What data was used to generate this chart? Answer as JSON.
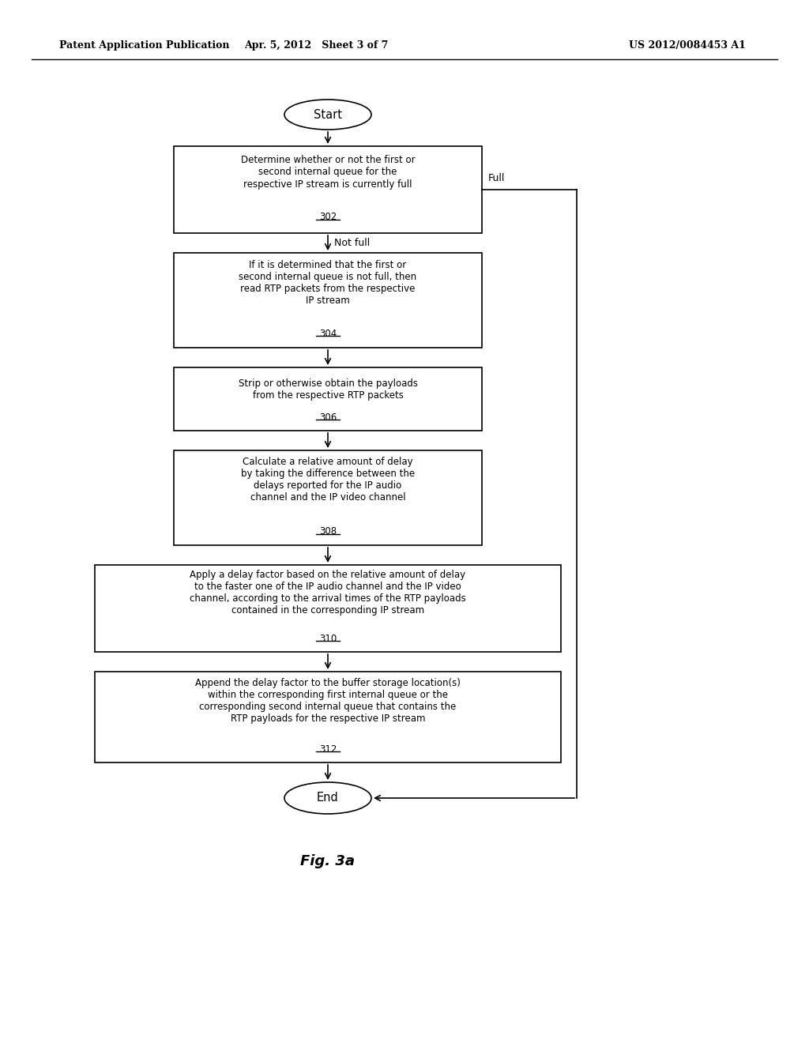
{
  "header_left": "Patent Application Publication",
  "header_center": "Apr. 5, 2012   Sheet 3 of 7",
  "header_right": "US 2012/0084453 A1",
  "fig_label": "Fig. 3a",
  "bg_color": "#ffffff",
  "start_text": "Start",
  "end_text": "End",
  "box302_text": "Determine whether or not the first or\nsecond internal queue for the\nrespective IP stream is currently full",
  "box302_num": "302",
  "box304_text": "If it is determined that the first or\nsecond internal queue is not full, then\nread RTP packets from the respective\nIP stream",
  "box304_num": "304",
  "box306_text": "Strip or otherwise obtain the payloads\nfrom the respective RTP packets",
  "box306_num": "306",
  "box308_text": "Calculate a relative amount of delay\nby taking the difference between the\ndelays reported for the IP audio\nchannel and the IP video channel",
  "box308_num": "308",
  "box310_text": "Apply a delay factor based on the relative amount of delay\nto the faster one of the IP audio channel and the IP video\nchannel, according to the arrival times of the RTP payloads\ncontained in the corresponding IP stream",
  "box310_num": "310",
  "box312_text": "Append the delay factor to the buffer storage location(s)\nwithin the corresponding first internal queue or the\ncorresponding second internal queue that contains the\nRTP payloads for the respective IP stream",
  "box312_num": "312",
  "label_full": "Full",
  "label_not_full": "Not full"
}
